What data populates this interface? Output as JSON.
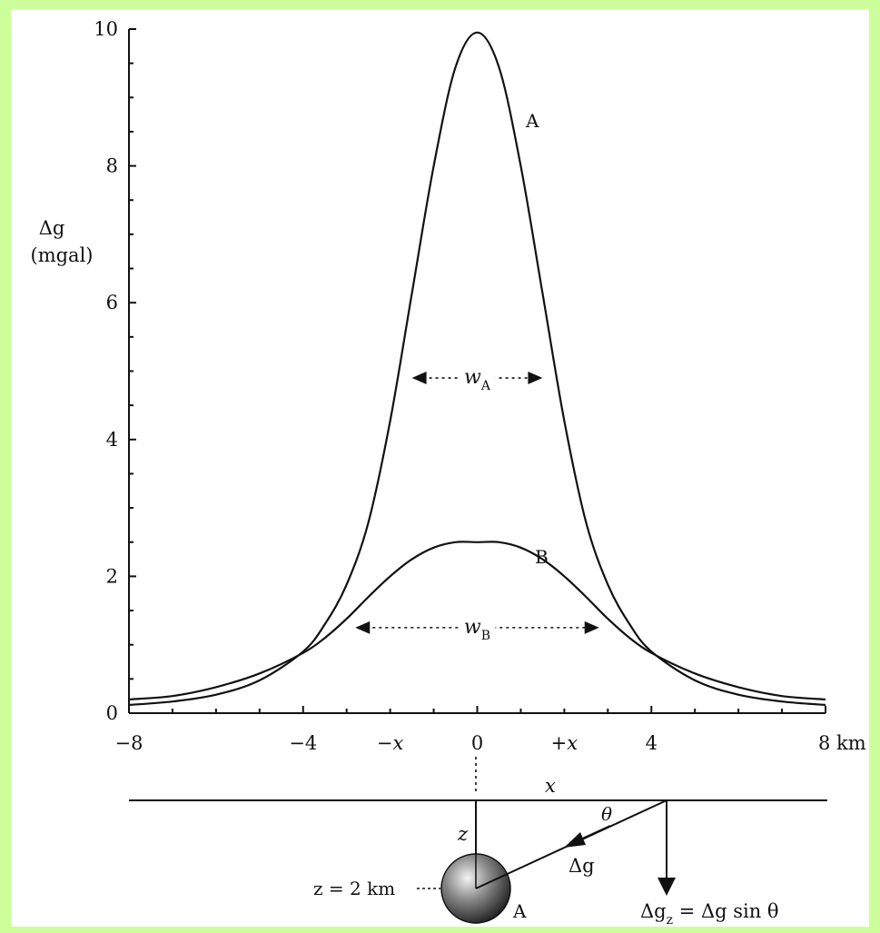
{
  "chart_data": {
    "type": "line",
    "title": "",
    "ylabel_symbol": "Δg",
    "ylabel_unit": "(mgal)",
    "xlabel": "",
    "xlim": [
      -8,
      8
    ],
    "ylim": [
      0,
      10
    ],
    "x_unit": "km",
    "grid": false,
    "x_ticks": [
      -8,
      -4,
      0,
      4,
      8
    ],
    "x_tick_labels": [
      "−8",
      "−4",
      "0",
      "4",
      "8 km"
    ],
    "y_ticks": [
      0,
      2,
      4,
      6,
      8,
      10
    ],
    "y_tick_labels": [
      "0",
      "2",
      "4",
      "6",
      "8",
      "10"
    ],
    "x_extra_labels": [
      "−x",
      "+x"
    ],
    "x": [
      -8,
      -7,
      -6,
      -5,
      -4,
      -3.5,
      -3,
      -2.5,
      -2,
      -1.5,
      -1,
      -0.5,
      0,
      0.5,
      1,
      1.5,
      2,
      2.5,
      3,
      3.5,
      4,
      5,
      6,
      7,
      8
    ],
    "series": [
      {
        "name": "A",
        "values": [
          0.12,
          0.17,
          0.27,
          0.48,
          0.9,
          1.3,
          1.88,
          2.79,
          4.27,
          6.14,
          8.0,
          9.44,
          9.95,
          9.44,
          8.0,
          6.14,
          4.27,
          2.79,
          1.88,
          1.3,
          0.9,
          0.48,
          0.27,
          0.17,
          0.12
        ]
      },
      {
        "name": "B",
        "values": [
          0.2,
          0.25,
          0.38,
          0.58,
          0.88,
          1.1,
          1.38,
          1.7,
          2.0,
          2.25,
          2.42,
          2.5,
          2.5,
          2.5,
          2.42,
          2.25,
          2.0,
          1.7,
          1.38,
          1.1,
          0.88,
          0.58,
          0.38,
          0.25,
          0.2
        ]
      }
    ],
    "annotations": {
      "width_A": {
        "symbol": "w",
        "subscript": "A",
        "x_from": -1.5,
        "x_to": 1.5,
        "y": 4.9
      },
      "width_B": {
        "symbol": "w",
        "subscript": "B",
        "x_from": -2.8,
        "x_to": 2.8,
        "y": 1.25
      }
    }
  },
  "diagram": {
    "surface_label": "x",
    "depth_label": "z",
    "angle_label": "θ",
    "vector_label": "Δg",
    "sphere_label": "A",
    "depth_value": "z = 2 km",
    "component_label": "Δg",
    "component_subscript": "z",
    "component_formula": " = Δg sin θ"
  }
}
